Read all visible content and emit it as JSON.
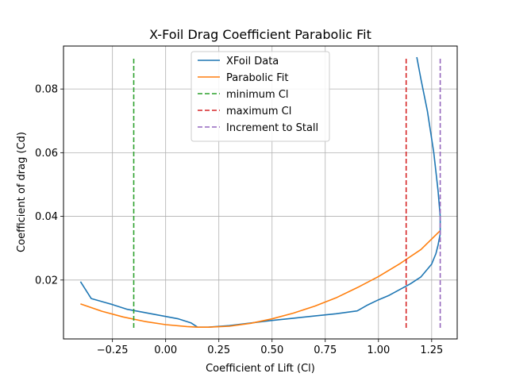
{
  "chart_data": {
    "type": "line",
    "title": "X-Foil Drag Coefficient Parabolic Fit",
    "xlabel": "Coefficient of Lift (Cl)",
    "ylabel": "Coefficient of drag (Cd)",
    "xlim": [
      -0.48,
      1.37
    ],
    "ylim": [
      0.0015,
      0.0935
    ],
    "xticks": [
      -0.25,
      0.0,
      0.25,
      0.5,
      0.75,
      1.0,
      1.25
    ],
    "xtick_labels": [
      "−0.25",
      "0.00",
      "0.25",
      "0.50",
      "0.75",
      "1.00",
      "1.25"
    ],
    "yticks": [
      0.02,
      0.04,
      0.06,
      0.08
    ],
    "ytick_labels": [
      "0.02",
      "0.04",
      "0.06",
      "0.08"
    ],
    "grid": true,
    "legend_position": "top-center",
    "series": [
      {
        "name": "XFoil Data",
        "color": "#1f77b4",
        "style": "solid",
        "x": [
          -0.4,
          -0.35,
          -0.25,
          -0.18,
          -0.1,
          -0.02,
          0.06,
          0.12,
          0.15,
          0.2,
          0.3,
          0.4,
          0.5,
          0.6,
          0.7,
          0.8,
          0.9,
          0.95,
          1.0,
          1.05,
          1.1,
          1.15,
          1.2,
          1.25,
          1.27,
          1.28,
          1.29,
          1.29,
          1.28,
          1.26,
          1.23,
          1.2,
          1.18
        ],
        "y": [
          0.0195,
          0.0142,
          0.0123,
          0.0108,
          0.0098,
          0.0088,
          0.0078,
          0.0065,
          0.0052,
          0.0052,
          0.0057,
          0.0065,
          0.0073,
          0.008,
          0.0087,
          0.0094,
          0.0103,
          0.0122,
          0.0138,
          0.0152,
          0.017,
          0.0188,
          0.021,
          0.025,
          0.0283,
          0.031,
          0.0345,
          0.04,
          0.048,
          0.06,
          0.073,
          0.083,
          0.09
        ]
      },
      {
        "name": "Parabolic Fit",
        "color": "#ff7f0e",
        "style": "solid",
        "x": [
          -0.4,
          -0.3,
          -0.2,
          -0.1,
          0.0,
          0.1,
          0.15,
          0.2,
          0.3,
          0.4,
          0.5,
          0.6,
          0.7,
          0.8,
          0.9,
          1.0,
          1.1,
          1.2,
          1.29
        ],
        "y": [
          0.0125,
          0.0102,
          0.0084,
          0.007,
          0.006,
          0.0054,
          0.0052,
          0.0052,
          0.0055,
          0.0064,
          0.0078,
          0.0096,
          0.0118,
          0.0144,
          0.0176,
          0.0211,
          0.0251,
          0.0296,
          0.0355
        ]
      },
      {
        "name": "minimum Cl",
        "color": "#2ca02c",
        "style": "dashed",
        "x": [
          -0.15,
          -0.15
        ],
        "y": [
          0.005,
          0.09
        ]
      },
      {
        "name": "maximum Cl",
        "color": "#d62728",
        "style": "dashed",
        "x": [
          1.13,
          1.13
        ],
        "y": [
          0.005,
          0.09
        ]
      },
      {
        "name": "Increment to Stall",
        "color": "#9467bd",
        "style": "dashed",
        "x": [
          1.29,
          1.29
        ],
        "y": [
          0.005,
          0.09
        ]
      }
    ]
  }
}
